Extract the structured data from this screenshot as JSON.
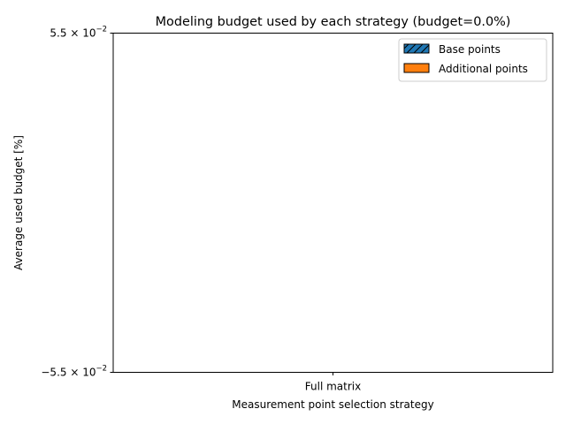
{
  "chart_data": {
    "type": "bar",
    "stacked": true,
    "title": "Modeling budget used by each strategy (budget=0.0%)",
    "xlabel": "Measurement point selection strategy",
    "ylabel": "Average used budget [%]",
    "categories": [
      "Full matrix"
    ],
    "series": [
      {
        "name": "Base points",
        "values": [
          0
        ],
        "color": "#1f77b4",
        "hatch": "diagonal"
      },
      {
        "name": "Additional points",
        "values": [
          0
        ],
        "color": "#ff7f0e"
      }
    ],
    "ylim": [
      -0.055,
      0.055
    ],
    "y_ticks": [
      {
        "value": 0.055,
        "mantissa": "5.5",
        "sign": "",
        "exponent": "−2"
      },
      {
        "value": -0.055,
        "mantissa": "5.5",
        "sign": "−",
        "exponent": "−2"
      }
    ],
    "legend_placement": "top-right",
    "grid": false
  }
}
